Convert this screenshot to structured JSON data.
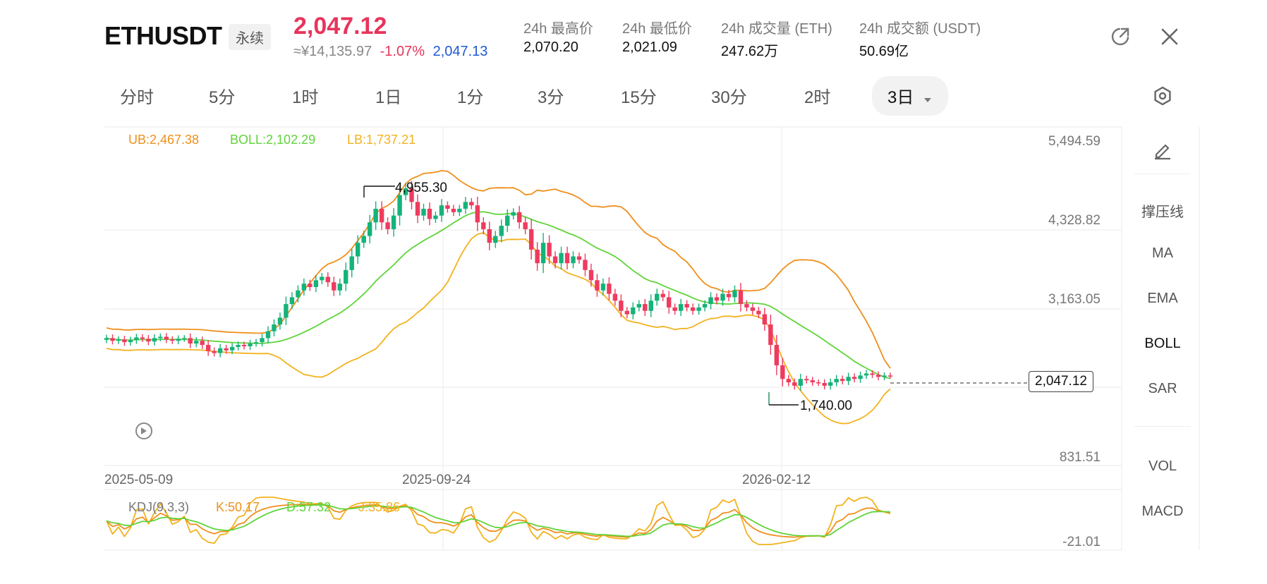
{
  "header": {
    "symbol": "ETHUSDT",
    "contract_type": "永续",
    "last_price": "2,047.12",
    "cny_price": "≈¥14,135.97",
    "change_pct": "-1.07%",
    "mark_price": "2,047.13",
    "stats": [
      {
        "label": "24h 最高价",
        "value": "2,070.20"
      },
      {
        "label": "24h 最低价",
        "value": "2,021.09"
      },
      {
        "label": "24h 成交量 (ETH)",
        "value": "247.62万"
      },
      {
        "label": "24h 成交额 (USDT)",
        "value": "50.69亿"
      }
    ]
  },
  "timeframes": [
    "分时",
    "5分",
    "1时",
    "1日",
    "1分",
    "3分",
    "15分",
    "30分",
    "2时",
    "3日"
  ],
  "active_timeframe": "3日",
  "indicators": {
    "boll_ub": "UB:2,467.38",
    "boll_mid": "BOLL:2,102.29",
    "boll_lb": "LB:1,737.21",
    "kdj_name": "KDJ(9,3,3)",
    "kdj_k": "K:50.17",
    "kdj_d": "D:57.32",
    "kdj_j": "J:35.86"
  },
  "side_panel": {
    "items": [
      "撑压线",
      "MA",
      "EMA",
      "BOLL",
      "SAR"
    ],
    "active": "BOLL",
    "sub_items": [
      "VOL",
      "MACD"
    ]
  },
  "colors": {
    "up": "#14b37a",
    "down": "#ee3b5e",
    "ub": "#ef8f1c",
    "mid": "#5fd43a",
    "lb": "#f3b21e"
  },
  "chart_data": {
    "type": "candlestick",
    "y_axis_labels": [
      "5,494.59",
      "4,328.82",
      "3,163.05",
      "831.51"
    ],
    "x_axis_labels": [
      "2025-05-09",
      "2025-09-24",
      "2026-02-12"
    ],
    "current_price_label": "2,047.12",
    "high_marker": "4,955.30",
    "low_marker": "1,740.00",
    "kdj_axis_label": "-21.01",
    "y_range": [
      831.51,
      5494.59
    ],
    "close": [
      2600,
      2560,
      2580,
      2540,
      2570,
      2610,
      2590,
      2550,
      2600,
      2620,
      2580,
      2560,
      2590,
      2600,
      2520,
      2560,
      2500,
      2410,
      2380,
      2450,
      2420,
      2470,
      2500,
      2480,
      2520,
      2540,
      2600,
      2700,
      2800,
      2900,
      3100,
      3200,
      3300,
      3400,
      3350,
      3450,
      3500,
      3420,
      3300,
      3400,
      3600,
      3800,
      4000,
      4100,
      4300,
      4500,
      4300,
      4200,
      4400,
      4700,
      4800,
      4600,
      4400,
      4500,
      4350,
      4400,
      4550,
      4500,
      4450,
      4500,
      4600,
      4550,
      4300,
      4200,
      4000,
      4100,
      4250,
      4400,
      4450,
      4300,
      4200,
      3900,
      3700,
      4000,
      3800,
      3700,
      3850,
      3700,
      3800,
      3750,
      3600,
      3450,
      3300,
      3400,
      3250,
      3150,
      3000,
      2950,
      3050,
      3100,
      3000,
      3150,
      3250,
      3200,
      3050,
      3000,
      3100,
      3050,
      3000,
      3050,
      3100,
      3200,
      3150,
      3250,
      3200,
      3300,
      3100,
      3050,
      3000,
      2950,
      2800,
      2500,
      2200,
      2000,
      1950,
      1900,
      2000,
      1980,
      1950,
      1940,
      1900,
      1950,
      2000,
      1970,
      2030,
      2000,
      2050,
      2080,
      2060,
      2030,
      2050,
      2047
    ]
  }
}
